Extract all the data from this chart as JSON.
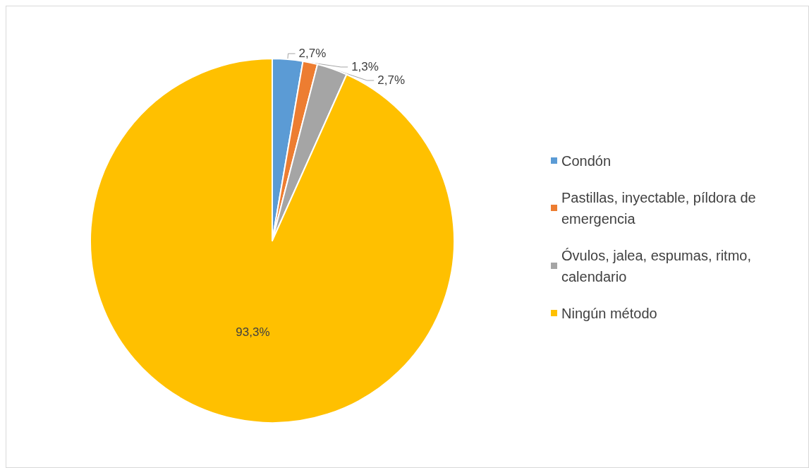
{
  "chart_data": {
    "type": "pie",
    "categories": [
      "Condón",
      "Pastillas, inyectable, píldora de emergencia",
      "Óvulos, jalea, espumas, ritmo, calendario",
      "Ningún método"
    ],
    "values": [
      2.7,
      1.3,
      2.7,
      93.3
    ],
    "colors": [
      "#5b9bd5",
      "#ed7d31",
      "#a5a5a5",
      "#ffc000"
    ],
    "value_labels": [
      "2,7%",
      "1,3%",
      "2,7%",
      "93,3%"
    ],
    "legend": "right"
  }
}
